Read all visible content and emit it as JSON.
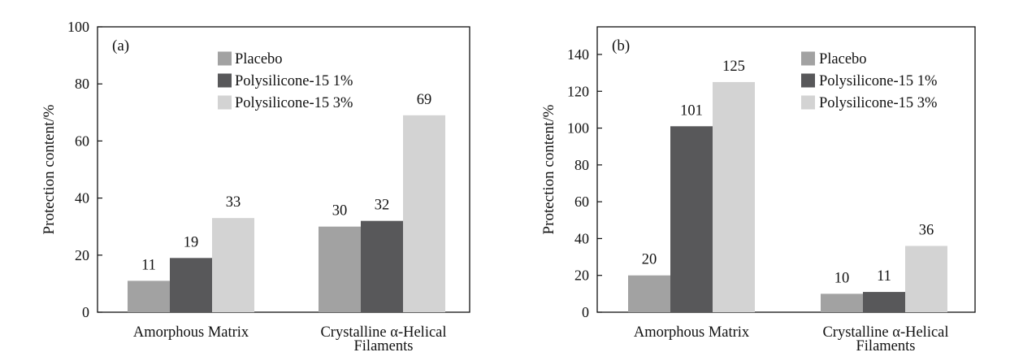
{
  "chart_data": [
    {
      "type": "bar",
      "panel_label": "(a)",
      "categories": [
        [
          "Amorphous Matrix"
        ],
        [
          "Crystalline α-Helical",
          "Filaments"
        ]
      ],
      "series": [
        {
          "name": "Placebo",
          "values": [
            11,
            30
          ],
          "color": "#a2a2a2"
        },
        {
          "name": "Polysilicone-15 1%",
          "values": [
            19,
            32
          ],
          "color": "#58585a"
        },
        {
          "name": "Polysilicone-15 3%",
          "values": [
            33,
            69
          ],
          "color": "#d3d3d3"
        }
      ],
      "data_labels": [
        [
          "11",
          "30"
        ],
        [
          "19",
          "32"
        ],
        [
          "33",
          "69"
        ]
      ],
      "ylabel": "Protection content/%",
      "ylim": [
        0,
        100
      ],
      "yticks": [
        0,
        20,
        40,
        60,
        80,
        100
      ],
      "ytick_labels": [
        "0",
        "20",
        "40",
        "60",
        "80",
        "100"
      ],
      "legend_position": "top",
      "grid": false
    },
    {
      "type": "bar",
      "panel_label": "(b)",
      "categories": [
        [
          "Amorphous Matrix"
        ],
        [
          "Crystalline α-Helical",
          "Filaments"
        ]
      ],
      "series": [
        {
          "name": "Placebo",
          "values": [
            20,
            10
          ],
          "color": "#a2a2a2"
        },
        {
          "name": "Polysilicone-15 1%",
          "values": [
            101,
            11
          ],
          "color": "#58585a"
        },
        {
          "name": "Polysilicone-15 3%",
          "values": [
            125,
            36
          ],
          "color": "#d3d3d3"
        }
      ],
      "data_labels": [
        [
          "20",
          "10"
        ],
        [
          "101",
          "11"
        ],
        [
          "125",
          "36"
        ]
      ],
      "ylabel": "Protection content/%",
      "ylim": [
        0,
        155
      ],
      "yticks": [
        0,
        20,
        40,
        60,
        80,
        100,
        120,
        140
      ],
      "ytick_labels": [
        "0",
        "20",
        "40",
        "60",
        "80",
        "100",
        "120",
        "140"
      ],
      "legend_position": "top-right",
      "grid": false
    }
  ]
}
